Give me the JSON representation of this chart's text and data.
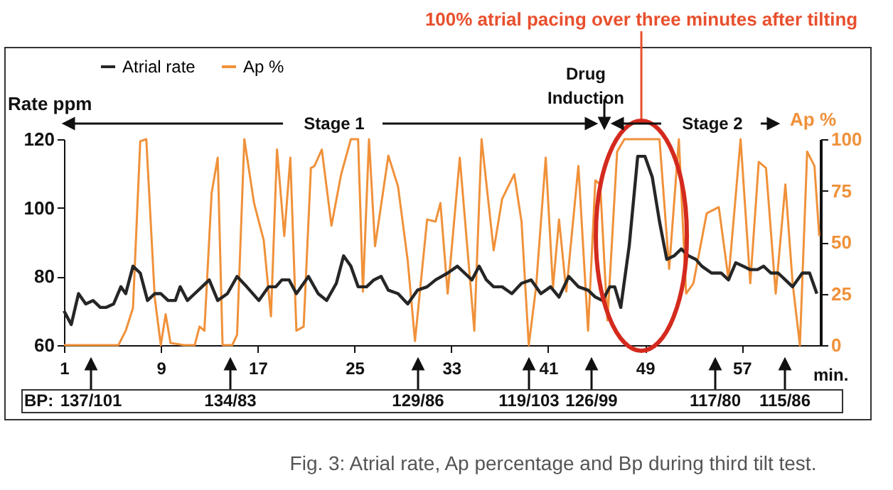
{
  "chart_data": {
    "type": "line",
    "ylabel": "Rate ppm",
    "y2label": "Ap %",
    "legend": "top left",
    "xlim": [
      1,
      63.5
    ],
    "xticks": [
      1,
      9,
      17,
      25,
      33,
      41,
      49,
      57
    ],
    "ylim": [
      60,
      120
    ],
    "yticks": [
      60,
      80,
      100,
      120
    ],
    "y2lim": [
      0,
      100
    ],
    "y2ticks": [
      0,
      25,
      50,
      75,
      100
    ],
    "series": [
      {
        "name": "Atrial rate",
        "color": "#262626",
        "x": [
          1,
          1.6,
          2.2,
          2.8,
          3.4,
          4,
          4.5,
          5.1,
          5.7,
          6.1,
          6.7,
          7.3,
          7.9,
          8.5,
          9,
          9.6,
          10.2,
          10.6,
          11.2,
          11.8,
          12.4,
          13,
          13.7,
          14.5,
          15.3,
          16.1,
          17.1,
          17.9,
          18.5,
          19,
          19.6,
          20.2,
          21.2,
          22,
          22.7,
          23.5,
          24.1,
          24.7,
          25.3,
          26,
          26.6,
          27.2,
          27.8,
          28.6,
          29.4,
          30.2,
          31,
          31.7,
          32.7,
          33.5,
          34.1,
          34.7,
          35.3,
          35.9,
          36.5,
          37.2,
          38,
          38.8,
          39.6,
          40.4,
          41.2,
          41.9,
          42.7,
          43.5,
          44.3,
          44.9,
          45.5,
          46.1,
          46.5,
          47,
          47.7,
          48.4,
          49,
          49.6,
          50.2,
          50.8,
          51.4,
          52,
          52.6,
          53.2,
          53.7,
          54.5,
          55.3,
          55.9,
          56.5,
          57.1,
          57.7,
          58.3,
          58.8,
          59.4,
          60,
          60.6,
          61.2,
          62,
          62.6,
          63.2
        ],
        "values": [
          70,
          66,
          75,
          72,
          73,
          71,
          71,
          72,
          77,
          75,
          83,
          81,
          73,
          75,
          75,
          73,
          73,
          77,
          73,
          75,
          77,
          79,
          73,
          75,
          80,
          77,
          73,
          77,
          77,
          79,
          79,
          75,
          80,
          75,
          73,
          78,
          86,
          83,
          77,
          77,
          79,
          80,
          76,
          75,
          72,
          76,
          77,
          79,
          81,
          83,
          81,
          79,
          83,
          79,
          77,
          77,
          75,
          78,
          79,
          75,
          77,
          74,
          80,
          77,
          76,
          74,
          73,
          77,
          77,
          71,
          89,
          115,
          115,
          109,
          96,
          85,
          86,
          88,
          86,
          85,
          83,
          81,
          81,
          79,
          84,
          83,
          82,
          82,
          83,
          81,
          81,
          79,
          77,
          81,
          81,
          75
        ]
      },
      {
        "name": "Ap %",
        "color": "#f0913a",
        "axis": "y2",
        "x": [
          1,
          5.5,
          6.1,
          6.7,
          7.3,
          7.8,
          8.5,
          9,
          9.4,
          9.8,
          10.9,
          11.8,
          12.2,
          12.6,
          13.2,
          13.7,
          14.1,
          14.9,
          15.3,
          15.9,
          16.7,
          17.5,
          18.1,
          18.6,
          19.2,
          19.7,
          20.2,
          20.8,
          21.4,
          21.7,
          22.3,
          23.1,
          23.9,
          24.7,
          25.3,
          25.7,
          26.2,
          26.7,
          27.8,
          28.6,
          29.4,
          30,
          31,
          31.7,
          32.1,
          32.7,
          33.7,
          34.9,
          35.5,
          36.5,
          37.2,
          38.2,
          38.8,
          39.4,
          40,
          40.8,
          41.4,
          41.9,
          42.5,
          43.5,
          44.3,
          44.9,
          45.3,
          45.9,
          46.7,
          47.3,
          50.2,
          51,
          51.8,
          52.4,
          53,
          54.1,
          55.1,
          55.9,
          56.9,
          57.7,
          58.4,
          59,
          59.8,
          60.6,
          61.2,
          61.8,
          62.4,
          63,
          63.4
        ],
        "values": [
          0,
          0,
          7,
          18,
          99,
          100,
          23,
          0,
          15,
          1,
          0,
          0,
          9,
          7,
          74,
          91,
          0,
          0,
          5,
          100,
          69,
          51,
          14,
          95,
          53,
          91,
          7,
          9,
          86,
          87,
          95,
          58,
          83,
          100,
          100,
          26,
          100,
          48,
          92,
          77,
          41,
          2,
          61,
          60,
          69,
          25,
          91,
          7,
          100,
          46,
          71,
          83,
          60,
          0,
          28,
          91,
          28,
          61,
          26,
          87,
          7,
          80,
          78,
          12,
          94,
          100,
          100,
          37,
          100,
          25,
          30,
          64,
          67,
          32,
          100,
          30,
          89,
          86,
          25,
          78,
          30,
          0,
          94,
          87,
          53
        ]
      }
    ],
    "annotations": [
      {
        "text": "100% atrial pacing over three minutes after tilting",
        "x": 48.7
      },
      "Drug Induction",
      "Stage 1",
      "Stage 2",
      "BP:",
      "137/101",
      "134/83",
      "129/86",
      "119/103",
      "126/99",
      "117/80",
      "115/86",
      "min.",
      "Fig. 3: Atrial rate, Ap percentage and Bp during third tilt test."
    ]
  }
}
